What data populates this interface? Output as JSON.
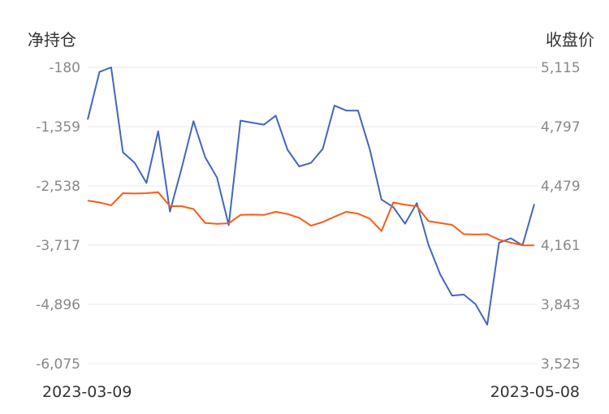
{
  "chart_data": {
    "type": "line",
    "left_axis_title": "净持仓",
    "right_axis_title": "收盘价",
    "left_ticks": [
      "-180",
      "-1,359",
      "-2,538",
      "-3,717",
      "-4,896",
      "-6,075"
    ],
    "right_ticks": [
      "5,115",
      "4,797",
      "4,479",
      "4,161",
      "3,843",
      "3,525"
    ],
    "left_range": [
      -6075,
      -180
    ],
    "right_range": [
      3525,
      5115
    ],
    "x_start_label": "2023-03-09",
    "x_end_label": "2023-05-08",
    "grid": true,
    "series": [
      {
        "axis": "left",
        "color": "#4466c0",
        "values": [
          -1220,
          -270,
          -180,
          -1870,
          -2080,
          -2480,
          -1450,
          -3050,
          -2180,
          -1250,
          -1970,
          -2370,
          -3320,
          -1240,
          -1280,
          -1320,
          -1140,
          -1820,
          -2150,
          -2080,
          -1800,
          -940,
          -1040,
          -1040,
          -1810,
          -2810,
          -2960,
          -3290,
          -2880,
          -3710,
          -4300,
          -4720,
          -4700,
          -4890,
          -5300,
          -3670,
          -3580,
          -3720,
          -2900
        ]
      },
      {
        "axis": "right",
        "color": "#ff5a14",
        "values": [
          4400,
          4390,
          4375,
          4440,
          4438,
          4440,
          4445,
          4370,
          4370,
          4355,
          4280,
          4275,
          4278,
          4323,
          4325,
          4323,
          4340,
          4328,
          4308,
          4265,
          4285,
          4313,
          4340,
          4330,
          4303,
          4237,
          4390,
          4378,
          4370,
          4290,
          4280,
          4270,
          4220,
          4218,
          4220,
          4190,
          4175,
          4160,
          4160
        ]
      }
    ]
  }
}
